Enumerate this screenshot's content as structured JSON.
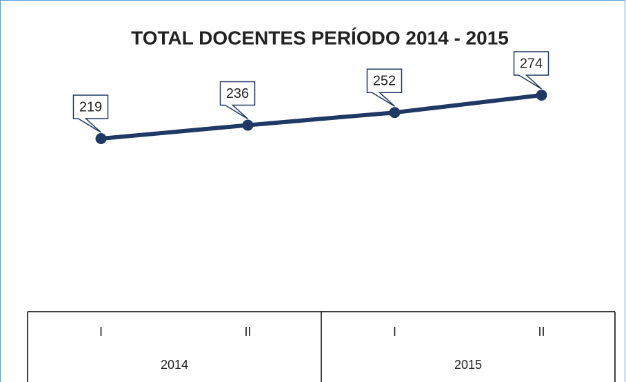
{
  "chart_data": {
    "type": "line",
    "title": "TOTAL DOCENTES PERÍODO 2014 - 2015",
    "groups": [
      {
        "name": "2014",
        "categories": [
          "I",
          "II"
        ]
      },
      {
        "name": "2015",
        "categories": [
          "I",
          "II"
        ]
      }
    ],
    "values": [
      219,
      236,
      252,
      274
    ],
    "color": "#1f3864"
  }
}
